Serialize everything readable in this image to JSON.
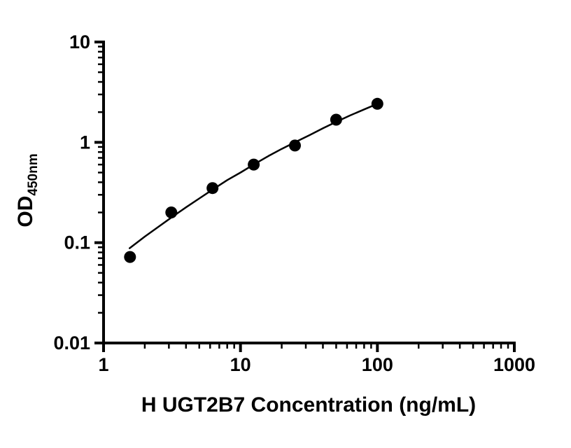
{
  "chart_data": {
    "type": "scatter",
    "title": "",
    "xlabel": "H UGT2B7 Concentration (ng/mL)",
    "ylabel_main": "OD",
    "ylabel_sub": "450nm",
    "x_scale": "log",
    "y_scale": "log",
    "xlim": [
      1,
      1000
    ],
    "ylim": [
      0.01,
      10
    ],
    "x_ticks": [
      1,
      10,
      100,
      1000
    ],
    "y_ticks": [
      0.01,
      0.1,
      1,
      10
    ],
    "grid": "off",
    "legend": "none",
    "marker_color": "#000000",
    "line_color": "#000000",
    "points": [
      {
        "x": 1.56,
        "y": 0.072
      },
      {
        "x": 3.125,
        "y": 0.2
      },
      {
        "x": 6.25,
        "y": 0.35
      },
      {
        "x": 12.5,
        "y": 0.6
      },
      {
        "x": 25,
        "y": 0.93
      },
      {
        "x": 50,
        "y": 1.68
      },
      {
        "x": 100,
        "y": 2.42
      }
    ],
    "fit_curve": [
      {
        "x": 1.55,
        "y": 0.088
      },
      {
        "x": 2.0,
        "y": 0.115
      },
      {
        "x": 2.5,
        "y": 0.143
      },
      {
        "x": 3.125,
        "y": 0.178
      },
      {
        "x": 4.0,
        "y": 0.225
      },
      {
        "x": 5.0,
        "y": 0.276
      },
      {
        "x": 6.25,
        "y": 0.338
      },
      {
        "x": 8.0,
        "y": 0.42
      },
      {
        "x": 10.0,
        "y": 0.5
      },
      {
        "x": 12.5,
        "y": 0.6
      },
      {
        "x": 16.0,
        "y": 0.73
      },
      {
        "x": 20.0,
        "y": 0.86
      },
      {
        "x": 25.0,
        "y": 1.0
      },
      {
        "x": 32.0,
        "y": 1.18
      },
      {
        "x": 40.0,
        "y": 1.38
      },
      {
        "x": 50.0,
        "y": 1.6
      },
      {
        "x": 63.0,
        "y": 1.85
      },
      {
        "x": 80.0,
        "y": 2.13
      },
      {
        "x": 100.0,
        "y": 2.42
      }
    ]
  }
}
